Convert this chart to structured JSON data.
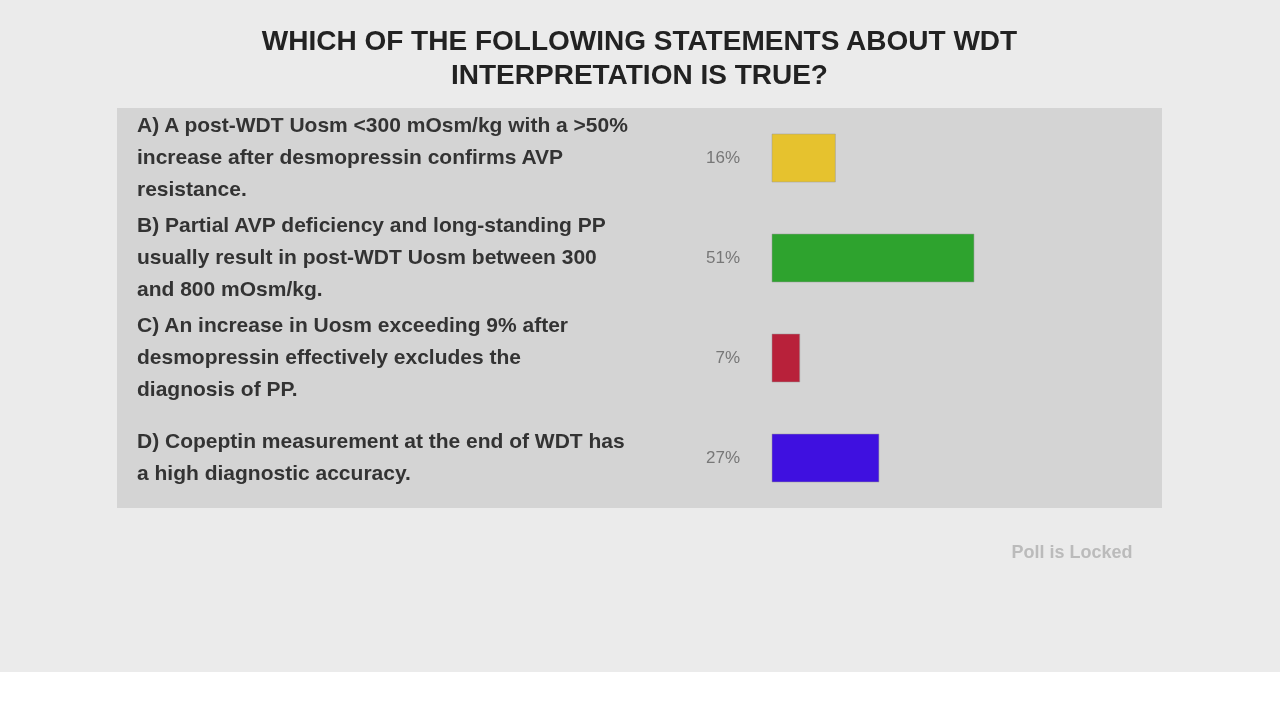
{
  "chart_data": {
    "type": "bar",
    "orientation": "horizontal",
    "title": "WHICH OF THE FOLLOWING STATEMENTS ABOUT WDT INTERPRETATION IS TRUE?",
    "categories": [
      "A) A post-WDT Uosm <300 mOsm/kg with a >50% increase after desmopressin confirms AVP resistance.",
      "B) Partial AVP deficiency and long-standing PP usually result in post-WDT Uosm between 300 and 800 mOsm/kg.",
      "C) An increase in Uosm exceeding 9% after desmopressin effectively excludes the diagnosis of PP.",
      "D) Copeptin measurement at the end of WDT has a high diagnostic accuracy."
    ],
    "values": [
      16,
      51,
      7,
      27
    ],
    "colors": [
      "#e6c22e",
      "#2ea32e",
      "#b8213a",
      "#3f10e0"
    ],
    "value_labels": [
      "16%",
      "51%",
      "7%",
      "27%"
    ],
    "annotations": [
      "Poll is Locked"
    ]
  }
}
